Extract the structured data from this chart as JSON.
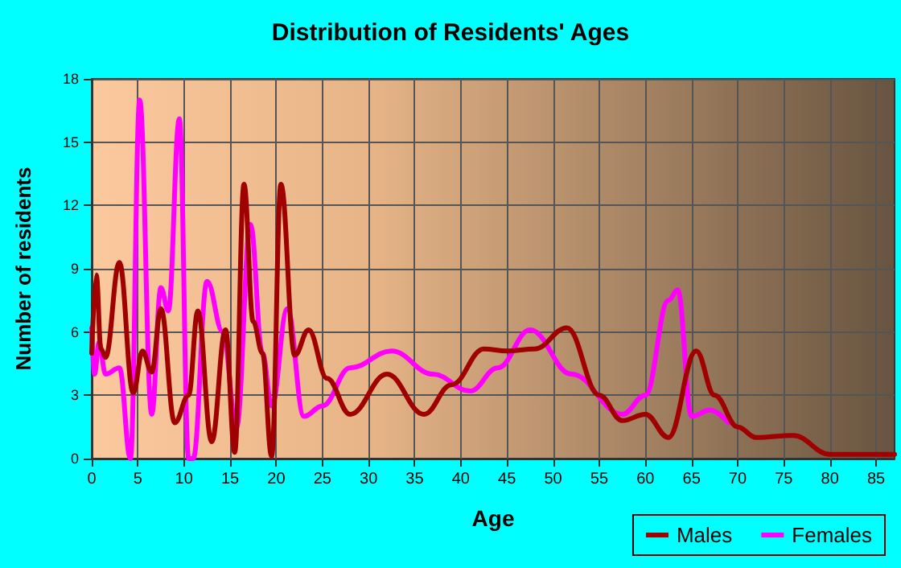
{
  "chart_data": {
    "type": "line",
    "title": "Distribution of Residents' Ages",
    "xlabel": "Age",
    "ylabel": "Number of residents",
    "xlim": [
      0,
      87
    ],
    "xticks": [
      0,
      5,
      10,
      15,
      20,
      25,
      30,
      35,
      40,
      45,
      50,
      55,
      60,
      65,
      70,
      75,
      80,
      85
    ],
    "ylim": [
      0,
      18
    ],
    "yticks": [
      0,
      3,
      6,
      9,
      12,
      15,
      18
    ],
    "grid": true,
    "legend": "bottom right",
    "marker": "none",
    "line_style": "solid",
    "series": [
      {
        "name": "Males",
        "color": "#a00000",
        "x": [
          0,
          0.5,
          1,
          1.5,
          3,
          4.5,
          5.5,
          6.5,
          7.5,
          9,
          10.5,
          11.5,
          13,
          14.5,
          15.5,
          16.5,
          17.5,
          18.5,
          19.5,
          20.5,
          22,
          23.5,
          25.5,
          28,
          32,
          36,
          39,
          42.5,
          45,
          48,
          51.5,
          55,
          57.5,
          60,
          62.5,
          65.5,
          67.5,
          70,
          72,
          76,
          80,
          87
        ],
        "values": [
          5,
          8.7,
          5.2,
          4.8,
          9.3,
          3.1,
          5.1,
          4.1,
          7.1,
          1.7,
          3,
          7,
          0.8,
          6.1,
          0.3,
          13,
          6.5,
          5,
          0.1,
          13,
          4.9,
          6.1,
          3.8,
          2.1,
          4,
          2.1,
          3.5,
          5.2,
          5.1,
          5.2,
          6.2,
          3,
          1.8,
          2.1,
          1,
          5.1,
          3,
          1.5,
          1,
          1.1,
          0.2,
          0.2
        ]
      },
      {
        "name": "Females",
        "color": "#ff00ff",
        "x": [
          0,
          0.3,
          0.8,
          1.5,
          3,
          4.2,
          5.2,
          6.5,
          7.5,
          8.3,
          9.5,
          10.5,
          11,
          12.5,
          14.2,
          15.7,
          17.2,
          18.5,
          19.5,
          21.2,
          23,
          25,
          28,
          32.5,
          37,
          41,
          44,
          47.5,
          52,
          57.5,
          60,
          62.5,
          63.5,
          65,
          67,
          69
        ],
        "values": [
          6.2,
          4,
          5.5,
          4,
          4.3,
          0,
          17,
          2.1,
          8.1,
          7,
          16.1,
          0,
          0,
          8.4,
          6,
          1.5,
          11.1,
          5,
          2.5,
          7.1,
          2,
          2.5,
          4.3,
          5.1,
          4,
          3.2,
          4.3,
          6.1,
          4,
          2.1,
          3,
          7.5,
          8,
          2,
          2.3,
          1.7
        ]
      }
    ]
  }
}
